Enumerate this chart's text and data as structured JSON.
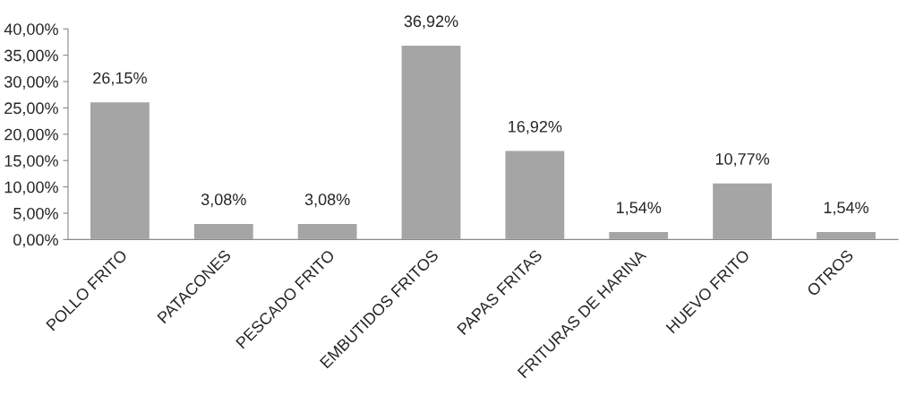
{
  "chart_data": {
    "type": "bar",
    "categories": [
      "POLLO FRITO",
      "PATACONES",
      "PESCADO FRITO",
      "EMBUTIDOS FRITOS",
      "PAPAS FRITAS",
      "FRITURAS DE HARINA",
      "HUEVO FRITO",
      "OTROS"
    ],
    "values": [
      26.15,
      3.08,
      3.08,
      36.92,
      16.92,
      1.54,
      10.77,
      1.54
    ],
    "value_labels": [
      "26,15%",
      "3,08%",
      "3,08%",
      "36,92%",
      "16,92%",
      "1,54%",
      "10,77%",
      "1,54%"
    ],
    "color": "#a5a5a5",
    "ylim": [
      0,
      40
    ],
    "yticks": [
      {
        "value": 0,
        "label": "0,00%"
      },
      {
        "value": 5,
        "label": "5,00%"
      },
      {
        "value": 10,
        "label": "10,00%"
      },
      {
        "value": 15,
        "label": "15,00%"
      },
      {
        "value": 20,
        "label": "20,00%"
      },
      {
        "value": 25,
        "label": "25,00%"
      },
      {
        "value": 30,
        "label": "30,00%"
      },
      {
        "value": 35,
        "label": "35,00%"
      },
      {
        "value": 40,
        "label": "40,00%"
      }
    ],
    "grid": false,
    "legend": false
  }
}
